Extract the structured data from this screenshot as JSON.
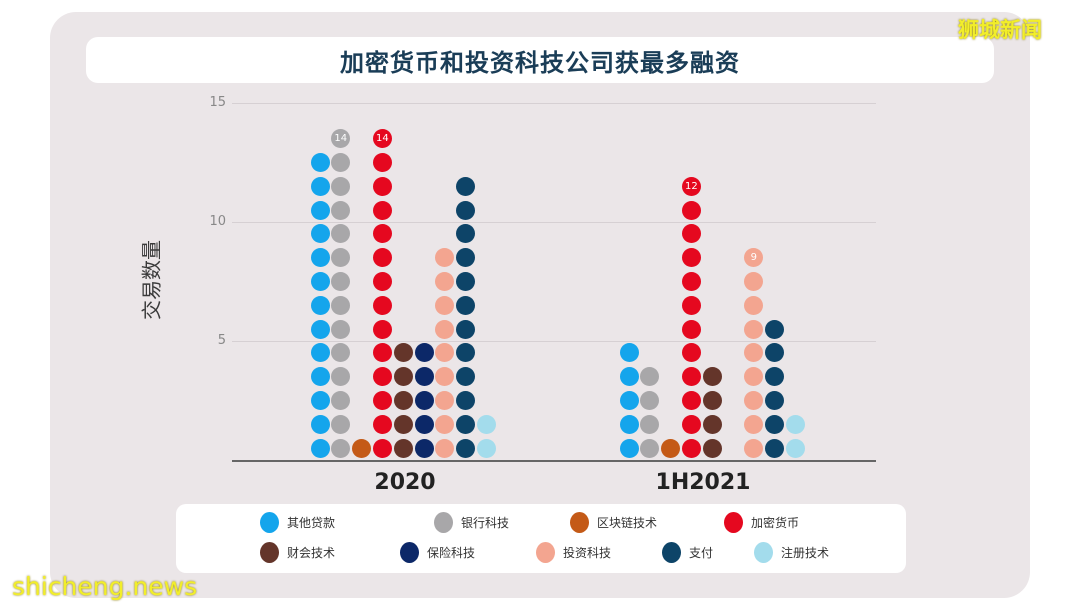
{
  "title": "加密货币和投资科技公司获最多融资",
  "watermarks": {
    "top_right": "狮城新闻",
    "bottom_left": "shicheng.news"
  },
  "chart_data": {
    "type": "bar",
    "subtype": "dot-stack",
    "title": "加密货币和投资科技公司获最多融资",
    "xlabel": "",
    "ylabel": "交易数量",
    "ylim": [
      0,
      15
    ],
    "yticks": [
      5,
      10,
      15
    ],
    "grid": true,
    "legend_position": "bottom",
    "categories": [
      "2020",
      "1H2021"
    ],
    "series": [
      {
        "name": "其他贷款",
        "color": "#14a5ec",
        "values": [
          13,
          5
        ]
      },
      {
        "name": "银行科技",
        "color": "#a8a7a9",
        "values": [
          14,
          4
        ]
      },
      {
        "name": "区块链技术",
        "color": "#c45a17",
        "values": [
          1,
          1
        ]
      },
      {
        "name": "加密货币",
        "color": "#e5081f",
        "values": [
          14,
          12
        ]
      },
      {
        "name": "财会技术",
        "color": "#64352a",
        "values": [
          5,
          4
        ]
      },
      {
        "name": "保险科技",
        "color": "#0c2868",
        "values": [
          5,
          0
        ]
      },
      {
        "name": "投资科技",
        "color": "#f3a590",
        "values": [
          9,
          9
        ]
      },
      {
        "name": "支付",
        "color": "#0d4468",
        "values": [
          12,
          6
        ]
      },
      {
        "name": "注册技术",
        "color": "#a3dcec",
        "values": [
          2,
          2
        ]
      }
    ],
    "annotations": [
      {
        "category": "2020",
        "series": "银行科技",
        "label": "14"
      },
      {
        "category": "2020",
        "series": "加密货币",
        "label": "14"
      },
      {
        "category": "1H2021",
        "series": "加密货币",
        "label": "12"
      },
      {
        "category": "1H2021",
        "series": "投资科技",
        "label": "9"
      }
    ]
  }
}
